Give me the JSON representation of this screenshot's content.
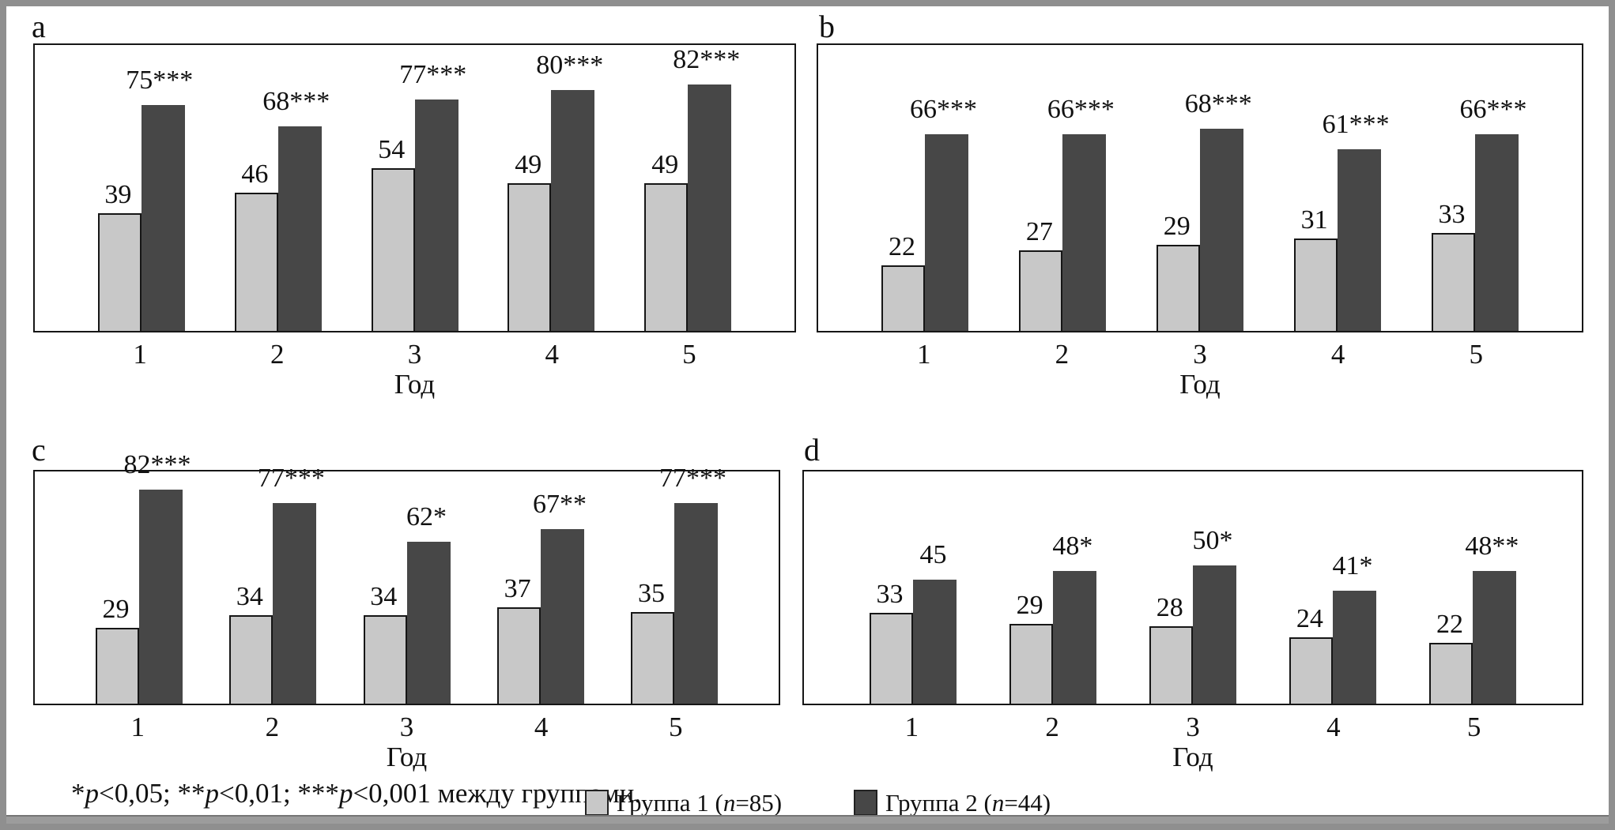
{
  "chart_data": [
    {
      "panel_label": "a",
      "type": "bar",
      "xlabel": "Год",
      "categories": [
        "1",
        "2",
        "3",
        "4",
        "5"
      ],
      "ylim": [
        0,
        95
      ],
      "grid": false,
      "series": [
        {
          "name": "Группа 1 (n=85)",
          "values": [
            39,
            46,
            54,
            49,
            49
          ],
          "bar_labels": [
            "39",
            "46",
            "54",
            "49",
            "49"
          ]
        },
        {
          "name": "Группа 2 (n=44)",
          "values": [
            75,
            68,
            77,
            80,
            82
          ],
          "bar_labels": [
            "75***",
            "68***",
            "77***",
            "80***",
            "82***"
          ]
        }
      ]
    },
    {
      "panel_label": "b",
      "type": "bar",
      "xlabel": "Год",
      "categories": [
        "1",
        "2",
        "3",
        "4",
        "5"
      ],
      "ylim": [
        0,
        96
      ],
      "grid": false,
      "series": [
        {
          "name": "Группа 1 (n=85)",
          "values": [
            22,
            27,
            29,
            31,
            33
          ],
          "bar_labels": [
            "22",
            "27",
            "29",
            "31",
            "33"
          ]
        },
        {
          "name": "Группа 2 (n=44)",
          "values": [
            66,
            66,
            68,
            61,
            66
          ],
          "bar_labels": [
            "66***",
            "66***",
            "68***",
            "61***",
            "66***"
          ]
        }
      ]
    },
    {
      "panel_label": "c",
      "type": "bar",
      "xlabel": "Год",
      "categories": [
        "1",
        "2",
        "3",
        "4",
        "5"
      ],
      "ylim": [
        0,
        89
      ],
      "grid": false,
      "series": [
        {
          "name": "Группа 1 (n=85)",
          "values": [
            29,
            34,
            34,
            37,
            35
          ],
          "bar_labels": [
            "29",
            "34",
            "34",
            "37",
            "35"
          ]
        },
        {
          "name": "Группа 2 (n=44)",
          "values": [
            82,
            77,
            62,
            67,
            77
          ],
          "bar_labels": [
            "82***",
            "77***",
            "62*",
            "67**",
            "77***"
          ]
        }
      ]
    },
    {
      "panel_label": "d",
      "type": "bar",
      "xlabel": "Год",
      "categories": [
        "1",
        "2",
        "3",
        "4",
        "5"
      ],
      "ylim": [
        0,
        84
      ],
      "grid": false,
      "series": [
        {
          "name": "Группа 1 (n=85)",
          "values": [
            33,
            29,
            28,
            24,
            22
          ],
          "bar_labels": [
            "33",
            "29",
            "28",
            "24",
            "22"
          ]
        },
        {
          "name": "Группа 2 (n=44)",
          "values": [
            45,
            48,
            50,
            41,
            48
          ],
          "bar_labels": [
            "45",
            "48*",
            "50*",
            "41*",
            "48**"
          ]
        }
      ]
    }
  ],
  "style": {
    "group1_color": "#c8c8c8",
    "group2_color": "#474747",
    "bar_outline": "#161616",
    "frame_color": "#8f8f8f"
  },
  "footer": {
    "footnote_segments": [
      {
        "text": "*"
      },
      {
        "text": "p",
        "italic": true
      },
      {
        "text": "<0,05; **"
      },
      {
        "text": "p",
        "italic": true
      },
      {
        "text": "<0,01; ***"
      },
      {
        "text": "p",
        "italic": true
      },
      {
        "text": "<0,001 между группами."
      }
    ],
    "legend": [
      {
        "swatch_color": "#c8c8c8",
        "segments": [
          {
            "text": "Группа 1 ("
          },
          {
            "text": "n",
            "italic": true
          },
          {
            "text": "=85)"
          }
        ]
      },
      {
        "swatch_color": "#474747",
        "segments": [
          {
            "text": "Группа 2 ("
          },
          {
            "text": "n",
            "italic": true
          },
          {
            "text": "=44)"
          }
        ]
      }
    ]
  }
}
